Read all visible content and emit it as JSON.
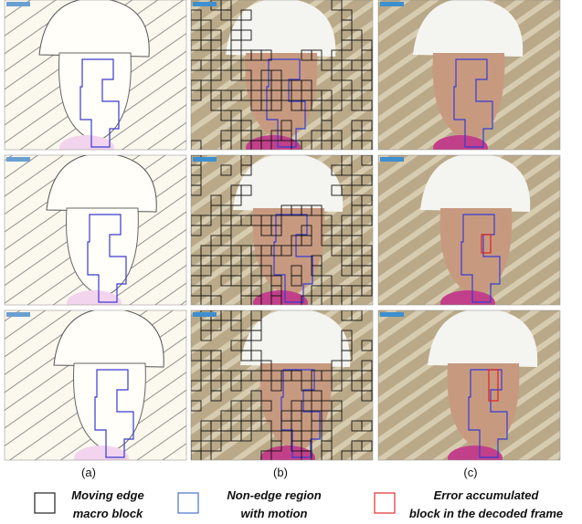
{
  "columns": [
    {
      "label": "(a)"
    },
    {
      "label": "(b)"
    },
    {
      "label": "(c)"
    }
  ],
  "legend": [
    {
      "lines": [
        "Moving edge",
        "macro block"
      ],
      "color": "#222222"
    },
    {
      "lines": [
        "Non-edge region",
        "with motion"
      ],
      "color": "#4a72c8"
    },
    {
      "lines": [
        "Error accumulated",
        "block in the decoded frame"
      ],
      "color": "#e03030"
    }
  ]
}
